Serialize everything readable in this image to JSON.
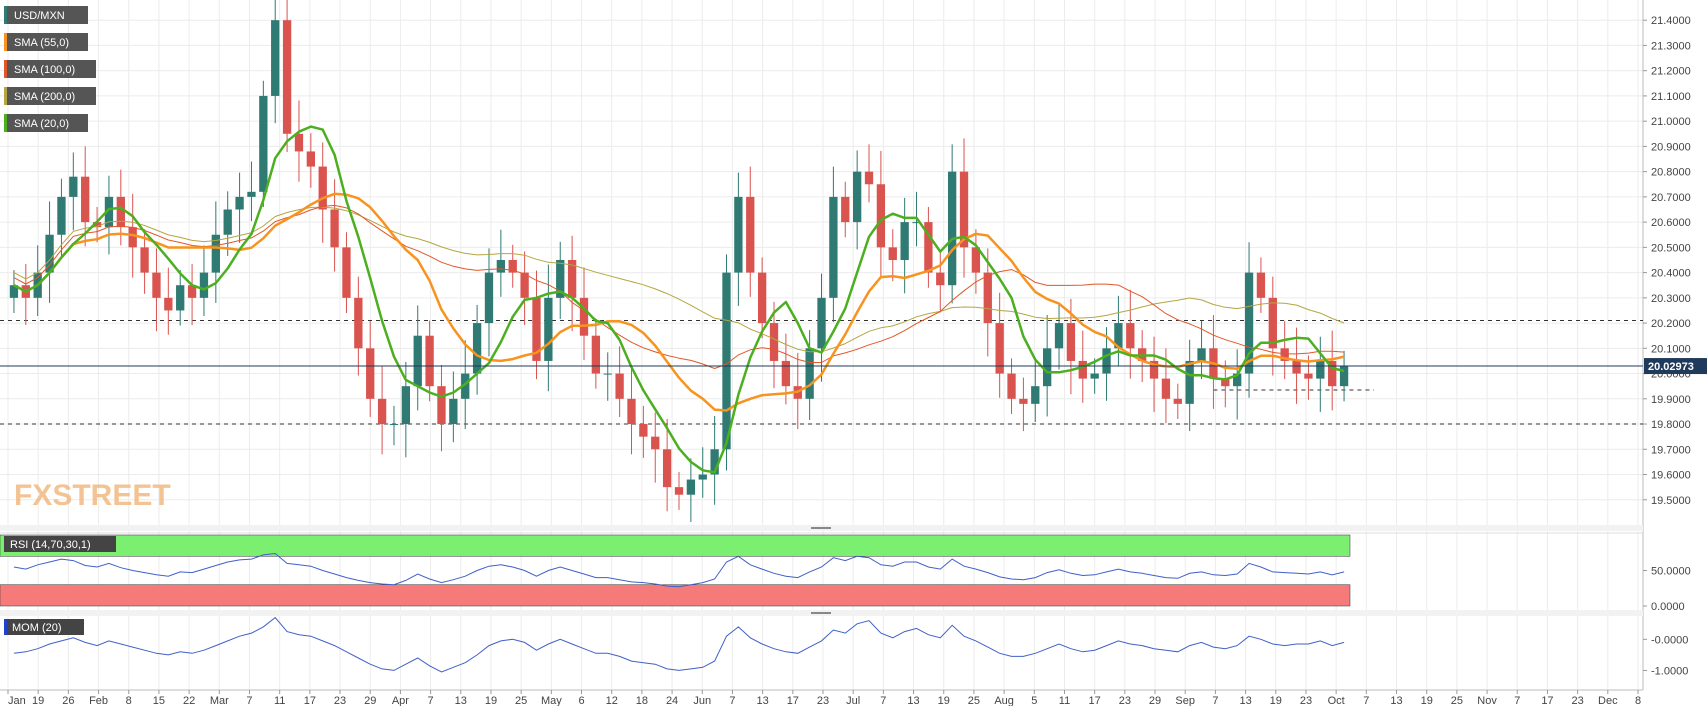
{
  "chart_data": [
    {
      "type": "candlestick",
      "symbol": "USD/MXN",
      "ylim": [
        19.4,
        21.48
      ],
      "yticks": [
        "21.4000",
        "21.3000",
        "21.2000",
        "21.1000",
        "21.0000",
        "20.9000",
        "20.8000",
        "20.7000",
        "20.6000",
        "20.5000",
        "20.4000",
        "20.3000",
        "20.2000",
        "20.1000",
        "20.0000",
        "19.9000",
        "19.8000",
        "19.7000",
        "19.6000",
        "19.5000"
      ],
      "last_price": "20.02973",
      "legend": [
        {
          "label": "USD/MXN",
          "color": "#2f7a72"
        },
        {
          "label": "SMA (55,0)",
          "color": "#f7931e"
        },
        {
          "label": "SMA (100,0)",
          "color": "#e0582a"
        },
        {
          "label": "SMA (200,0)",
          "color": "#b5a642"
        },
        {
          "label": "SMA (20,0)",
          "color": "#4caf1f"
        }
      ],
      "horizontal_levels": [
        20.21,
        19.8
      ],
      "support_dash": 19.935,
      "colors": {
        "up": "#2f7a72",
        "down": "#d9534f"
      },
      "closes": [
        20.35,
        20.3,
        20.4,
        20.55,
        20.7,
        20.78,
        20.6,
        20.58,
        20.7,
        20.58,
        20.5,
        20.4,
        20.3,
        20.25,
        20.35,
        20.3,
        20.4,
        20.55,
        20.65,
        20.7,
        20.72,
        21.1,
        21.4,
        20.95,
        20.88,
        20.82,
        20.65,
        20.5,
        20.3,
        20.1,
        19.9,
        19.8,
        19.8,
        19.95,
        20.15,
        19.95,
        19.8,
        19.9,
        20.0,
        20.2,
        20.4,
        20.45,
        20.4,
        20.3,
        20.05,
        20.3,
        20.45,
        20.3,
        20.15,
        20.0,
        20.0,
        19.9,
        19.8,
        19.75,
        19.7,
        19.55,
        19.52,
        19.58,
        19.6,
        19.7,
        20.4,
        20.7,
        20.4,
        20.2,
        20.05,
        19.95,
        19.9,
        20.1,
        20.3,
        20.7,
        20.6,
        20.8,
        20.75,
        20.5,
        20.45,
        20.6,
        20.6,
        20.4,
        20.35,
        20.8,
        20.5,
        20.4,
        20.2,
        20.0,
        19.9,
        19.88,
        19.95,
        20.1,
        20.2,
        20.05,
        19.98,
        20.0,
        20.1,
        20.2,
        20.1,
        20.05,
        19.98,
        19.9,
        19.88,
        20.05,
        20.1,
        19.98,
        19.95,
        20.0,
        20.4,
        20.3,
        20.1,
        20.05,
        20.0,
        19.98,
        20.05,
        19.95,
        20.03
      ],
      "rsi": {
        "label": "RSI (14,70,30,1)",
        "ylim": [
          0,
          100
        ],
        "yticks": [
          "50.0000",
          "0.0000"
        ],
        "overbought": 70,
        "oversold": 30,
        "bands": {
          "overbought": "#7bef6f",
          "oversold": "#f77a7a"
        },
        "line_color": "#4060c8",
        "values": [
          55,
          52,
          58,
          62,
          66,
          64,
          57,
          55,
          60,
          54,
          50,
          47,
          44,
          42,
          48,
          47,
          52,
          57,
          62,
          65,
          66,
          72,
          74,
          60,
          58,
          56,
          50,
          45,
          40,
          36,
          33,
          31,
          30,
          36,
          45,
          38,
          33,
          37,
          42,
          50,
          56,
          58,
          55,
          50,
          42,
          50,
          55,
          50,
          45,
          40,
          40,
          37,
          34,
          33,
          31,
          28,
          27,
          30,
          33,
          38,
          62,
          70,
          58,
          52,
          46,
          42,
          40,
          48,
          55,
          68,
          64,
          70,
          68,
          58,
          56,
          62,
          62,
          55,
          52,
          66,
          56,
          52,
          47,
          41,
          38,
          37,
          40,
          47,
          51,
          46,
          43,
          44,
          48,
          52,
          48,
          46,
          43,
          40,
          39,
          46,
          48,
          44,
          43,
          45,
          60,
          55,
          48,
          47,
          46,
          45,
          48,
          44,
          48
        ]
      },
      "mom": {
        "label": "MOM (20)",
        "ylim": [
          -1.5,
          0.75
        ],
        "yticks": [
          "-0.0000",
          "-1.0000"
        ],
        "line_color": "#4060c8",
        "values": [
          -0.45,
          -0.4,
          -0.3,
          -0.15,
          -0.05,
          0.05,
          -0.1,
          -0.2,
          -0.05,
          -0.15,
          -0.25,
          -0.35,
          -0.45,
          -0.5,
          -0.4,
          -0.45,
          -0.35,
          -0.2,
          -0.05,
          0.1,
          0.2,
          0.4,
          0.7,
          0.25,
          0.15,
          0.1,
          -0.05,
          -0.2,
          -0.4,
          -0.6,
          -0.8,
          -0.95,
          -1.0,
          -0.8,
          -0.6,
          -0.85,
          -1.05,
          -0.9,
          -0.75,
          -0.5,
          -0.2,
          -0.05,
          0.0,
          -0.1,
          -0.35,
          -0.15,
          0.0,
          -0.15,
          -0.3,
          -0.45,
          -0.45,
          -0.55,
          -0.7,
          -0.75,
          -0.8,
          -0.95,
          -1.0,
          -0.95,
          -0.9,
          -0.7,
          0.1,
          0.4,
          0.05,
          -0.15,
          -0.3,
          -0.4,
          -0.45,
          -0.25,
          -0.05,
          0.3,
          0.2,
          0.5,
          0.6,
          0.2,
          0.05,
          0.25,
          0.35,
          0.15,
          0.05,
          0.45,
          0.1,
          -0.05,
          -0.25,
          -0.45,
          -0.55,
          -0.55,
          -0.45,
          -0.3,
          -0.15,
          -0.3,
          -0.4,
          -0.35,
          -0.2,
          -0.05,
          -0.15,
          -0.2,
          -0.3,
          -0.35,
          -0.4,
          -0.2,
          -0.1,
          -0.25,
          -0.3,
          -0.2,
          0.1,
          0.0,
          -0.15,
          -0.2,
          -0.15,
          -0.15,
          -0.05,
          -0.2,
          -0.1
        ]
      },
      "x_ticks": [
        "Jan",
        "19",
        "26",
        "Feb",
        "8",
        "15",
        "22",
        "Mar",
        "7",
        "11",
        "17",
        "23",
        "29",
        "Apr",
        "7",
        "13",
        "19",
        "25",
        "May",
        "6",
        "12",
        "18",
        "24",
        "Jun",
        "7",
        "13",
        "17",
        "23",
        "Jul",
        "7",
        "13",
        "19",
        "25",
        "Aug",
        "5",
        "11",
        "17",
        "23",
        "29",
        "Sep",
        "7",
        "13",
        "19",
        "23",
        "Oct",
        "7",
        "13",
        "19",
        "25",
        "Nov",
        "7",
        "17",
        "23",
        "Dec",
        "8"
      ],
      "watermark": "FXSTREET"
    }
  ]
}
